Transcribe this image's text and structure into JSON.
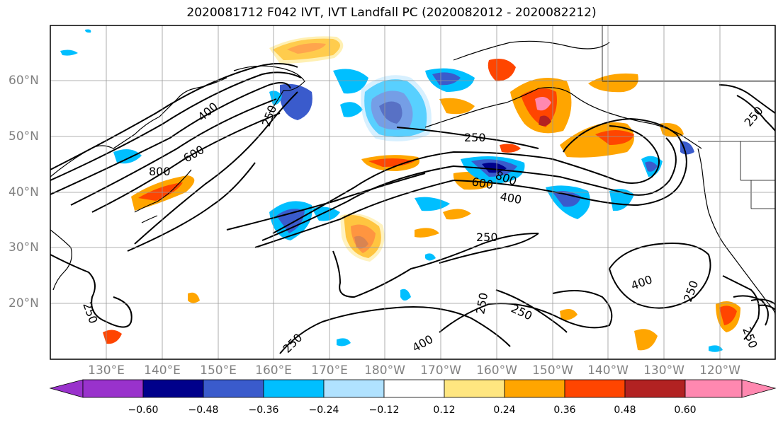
{
  "title": "2020081712 F042 IVT, IVT Landfall PC (2020082012 - 2020082212)",
  "lat_labels": [
    "60°N",
    "50°N",
    "40°N",
    "30°N",
    "20°N"
  ],
  "lon_labels": [
    "130°E",
    "140°E",
    "150°E",
    "160°E",
    "170°E",
    "180°W",
    "170°W",
    "160°W",
    "150°W",
    "140°W",
    "130°W",
    "120°W"
  ],
  "contour_labels": [
    "400",
    "250",
    "600",
    "800",
    "250",
    "800",
    "600",
    "400",
    "250",
    "250",
    "250",
    "250",
    "400",
    "250",
    "250",
    "250",
    "400",
    "250"
  ],
  "colorbar": {
    "ticks": [
      "−0.60",
      "−0.48",
      "−0.36",
      "−0.24",
      "−0.12",
      "0.12",
      "0.24",
      "0.36",
      "0.48",
      "0.60"
    ],
    "colors": [
      "#9932cc",
      "#00008b",
      "#3a5bcc",
      "#00bfff",
      "#b0e2ff",
      "#ffffff",
      "#ffe680",
      "#ffa500",
      "#ff4500",
      "#b22222",
      "#ff88b0"
    ]
  }
}
